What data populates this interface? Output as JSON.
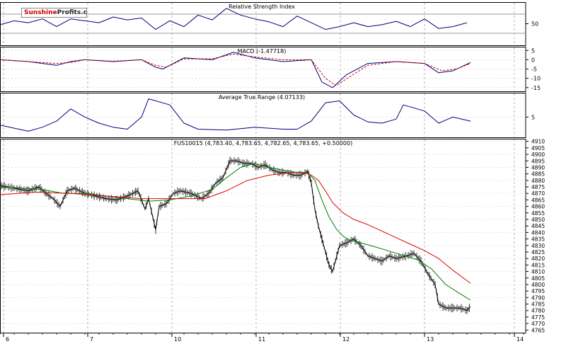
{
  "brand": {
    "part1": "Sunshine",
    "part2": "Profits.com"
  },
  "colors": {
    "price": "#000000",
    "ma_fast": "#008000",
    "ma_slow": "#e00000",
    "rsi": "#000080",
    "macd": "#000080",
    "signal": "#cc0000",
    "atr": "#000080",
    "grid": "#b4b4b4",
    "axis": "#000000"
  },
  "chart_data": [
    {
      "type": "line",
      "title": "Relative Strength Index",
      "ylim": [
        5,
        95
      ],
      "yticks": [
        50
      ],
      "reference_lines": [
        70,
        30
      ],
      "series": [
        {
          "name": "",
          "style": "line",
          "x": [
            0,
            20,
            40,
            60,
            80,
            100,
            120,
            140,
            160,
            180,
            200,
            220,
            240,
            260,
            280,
            300,
            320,
            340,
            360,
            380,
            400,
            420,
            440,
            460,
            480,
            500,
            520,
            540,
            560,
            580,
            600,
            620,
            640,
            660
          ],
          "values": [
            48,
            56,
            52,
            60,
            44,
            60,
            56,
            52,
            64,
            58,
            62,
            38,
            56,
            44,
            68,
            58,
            82,
            68,
            60,
            54,
            44,
            66,
            52,
            38,
            44,
            52,
            44,
            48,
            55,
            44,
            60,
            40,
            44,
            52
          ]
        }
      ]
    },
    {
      "type": "line",
      "title": "MACD (-1.47718)",
      "ylim": [
        -17,
        7
      ],
      "yticks": [
        5,
        0,
        -5,
        -10,
        -15
      ],
      "series": [
        {
          "name": "",
          "style": "line",
          "x": [
            0,
            40,
            80,
            100,
            120,
            160,
            200,
            220,
            230,
            260,
            300,
            330,
            360,
            400,
            440,
            455,
            470,
            490,
            520,
            560,
            600,
            620,
            640,
            665
          ],
          "values": [
            0,
            -1,
            -3,
            -1,
            0,
            -1,
            0,
            -4,
            -5,
            1,
            0,
            4,
            1,
            -1,
            0,
            -12,
            -15,
            -8,
            -2,
            -1,
            -2,
            -7,
            -6,
            -1.5
          ]
        },
        {
          "name": "",
          "style": "dashed",
          "x": [
            0,
            40,
            80,
            100,
            120,
            160,
            200,
            220,
            235,
            260,
            300,
            330,
            360,
            400,
            440,
            460,
            475,
            495,
            520,
            560,
            600,
            625,
            645,
            665
          ],
          "values": [
            0,
            -1,
            -2,
            -1.5,
            0,
            -0.8,
            0,
            -3,
            -4,
            0.5,
            0.5,
            3,
            1.5,
            0,
            0,
            -10,
            -14,
            -9,
            -3,
            -1,
            -2,
            -6,
            -5,
            -2
          ]
        }
      ]
    },
    {
      "type": "line",
      "title": "Average True Range (4.07133)",
      "ylim": [
        0,
        11
      ],
      "yticks": [
        5
      ],
      "series": [
        {
          "name": "",
          "style": "line",
          "x": [
            0,
            40,
            60,
            80,
            100,
            120,
            140,
            160,
            180,
            200,
            210,
            240,
            260,
            280,
            320,
            360,
            400,
            420,
            440,
            460,
            480,
            500,
            520,
            540,
            560,
            570,
            600,
            620,
            640,
            665
          ],
          "values": [
            3,
            1.5,
            2.5,
            4,
            7,
            5,
            3.5,
            2.5,
            2,
            5,
            9.5,
            8,
            3.5,
            2,
            1.8,
            2.5,
            2,
            2,
            4,
            8.5,
            9,
            5.5,
            3.8,
            3.5,
            4.5,
            8,
            6.5,
            3.5,
            5,
            4
          ]
        }
      ]
    },
    {
      "type": "line",
      "title": "FUS10015 (4,783.40, 4,783.65, 4,782.65, 4,783.65, +0.50000)",
      "ylim": [
        4763,
        4912
      ],
      "yticks": [
        4910,
        4905,
        4900,
        4895,
        4890,
        4885,
        4880,
        4875,
        4870,
        4865,
        4860,
        4855,
        4850,
        4845,
        4840,
        4835,
        4830,
        4825,
        4820,
        4815,
        4810,
        4805,
        4800,
        4795,
        4790,
        4785,
        4780,
        4775,
        4770,
        4765
      ],
      "xlim": [
        0,
        800
      ],
      "xticks": [
        {
          "label": "6",
          "x": 5
        },
        {
          "label": "7",
          "x": 124
        },
        {
          "label": "10",
          "x": 243
        },
        {
          "label": "11",
          "x": 362
        },
        {
          "label": "12",
          "x": 481
        },
        {
          "label": "13",
          "x": 600
        },
        {
          "label": "14",
          "x": 727
        }
      ],
      "series": [
        {
          "name": "",
          "style": "price",
          "x": [
            0,
            20,
            40,
            55,
            65,
            75,
            85,
            95,
            105,
            120,
            135,
            150,
            165,
            180,
            195,
            205,
            210,
            220,
            225,
            235,
            245,
            255,
            270,
            285,
            295,
            305,
            315,
            325,
            335,
            345,
            355,
            365,
            375,
            385,
            395,
            405,
            415,
            425,
            435,
            440,
            445,
            450,
            455,
            460,
            465,
            470,
            480,
            490,
            500,
            510,
            520,
            530,
            540,
            550,
            560,
            575,
            585,
            595,
            605,
            615,
            620,
            630,
            640,
            650,
            660,
            665
          ],
          "values": [
            4876,
            4874,
            4872,
            4875,
            4870,
            4866,
            4860,
            4872,
            4874,
            4870,
            4868,
            4866,
            4865,
            4868,
            4872,
            4858,
            4866,
            4842,
            4860,
            4862,
            4870,
            4872,
            4870,
            4866,
            4870,
            4878,
            4882,
            4895,
            4895,
            4893,
            4893,
            4890,
            4892,
            4888,
            4886,
            4886,
            4884,
            4884,
            4887,
            4878,
            4858,
            4845,
            4835,
            4825,
            4815,
            4810,
            4830,
            4832,
            4835,
            4830,
            4822,
            4820,
            4818,
            4822,
            4820,
            4822,
            4824,
            4818,
            4808,
            4800,
            4785,
            4782,
            4782,
            4782,
            4780,
            4783
          ]
        },
        {
          "name": "",
          "style": "line",
          "x": [
            0,
            30,
            60,
            90,
            120,
            150,
            180,
            210,
            240,
            270,
            300,
            320,
            340,
            360,
            380,
            400,
            420,
            435,
            445,
            455,
            465,
            475,
            485,
            495,
            510,
            530,
            560,
            590,
            610,
            630,
            650,
            665
          ],
          "values": [
            4875,
            4874,
            4873,
            4870,
            4870,
            4868,
            4866,
            4864,
            4865,
            4868,
            4873,
            4882,
            4890,
            4893,
            4890,
            4888,
            4886,
            4886,
            4880,
            4865,
            4852,
            4843,
            4837,
            4834,
            4832,
            4829,
            4824,
            4819,
            4812,
            4800,
            4793,
            4788
          ]
        },
        {
          "name": "",
          "style": "line",
          "x": [
            0,
            50,
            100,
            150,
            200,
            250,
            290,
            320,
            350,
            380,
            410,
            430,
            440,
            450,
            460,
            470,
            485,
            500,
            520,
            540,
            560,
            580,
            600,
            620,
            640,
            665
          ],
          "values": [
            4869,
            4871,
            4870,
            4868,
            4866,
            4866,
            4866,
            4872,
            4880,
            4884,
            4886,
            4886,
            4884,
            4880,
            4872,
            4863,
            4855,
            4850,
            4846,
            4841,
            4836,
            4831,
            4826,
            4820,
            4811,
            4801
          ]
        }
      ]
    }
  ]
}
